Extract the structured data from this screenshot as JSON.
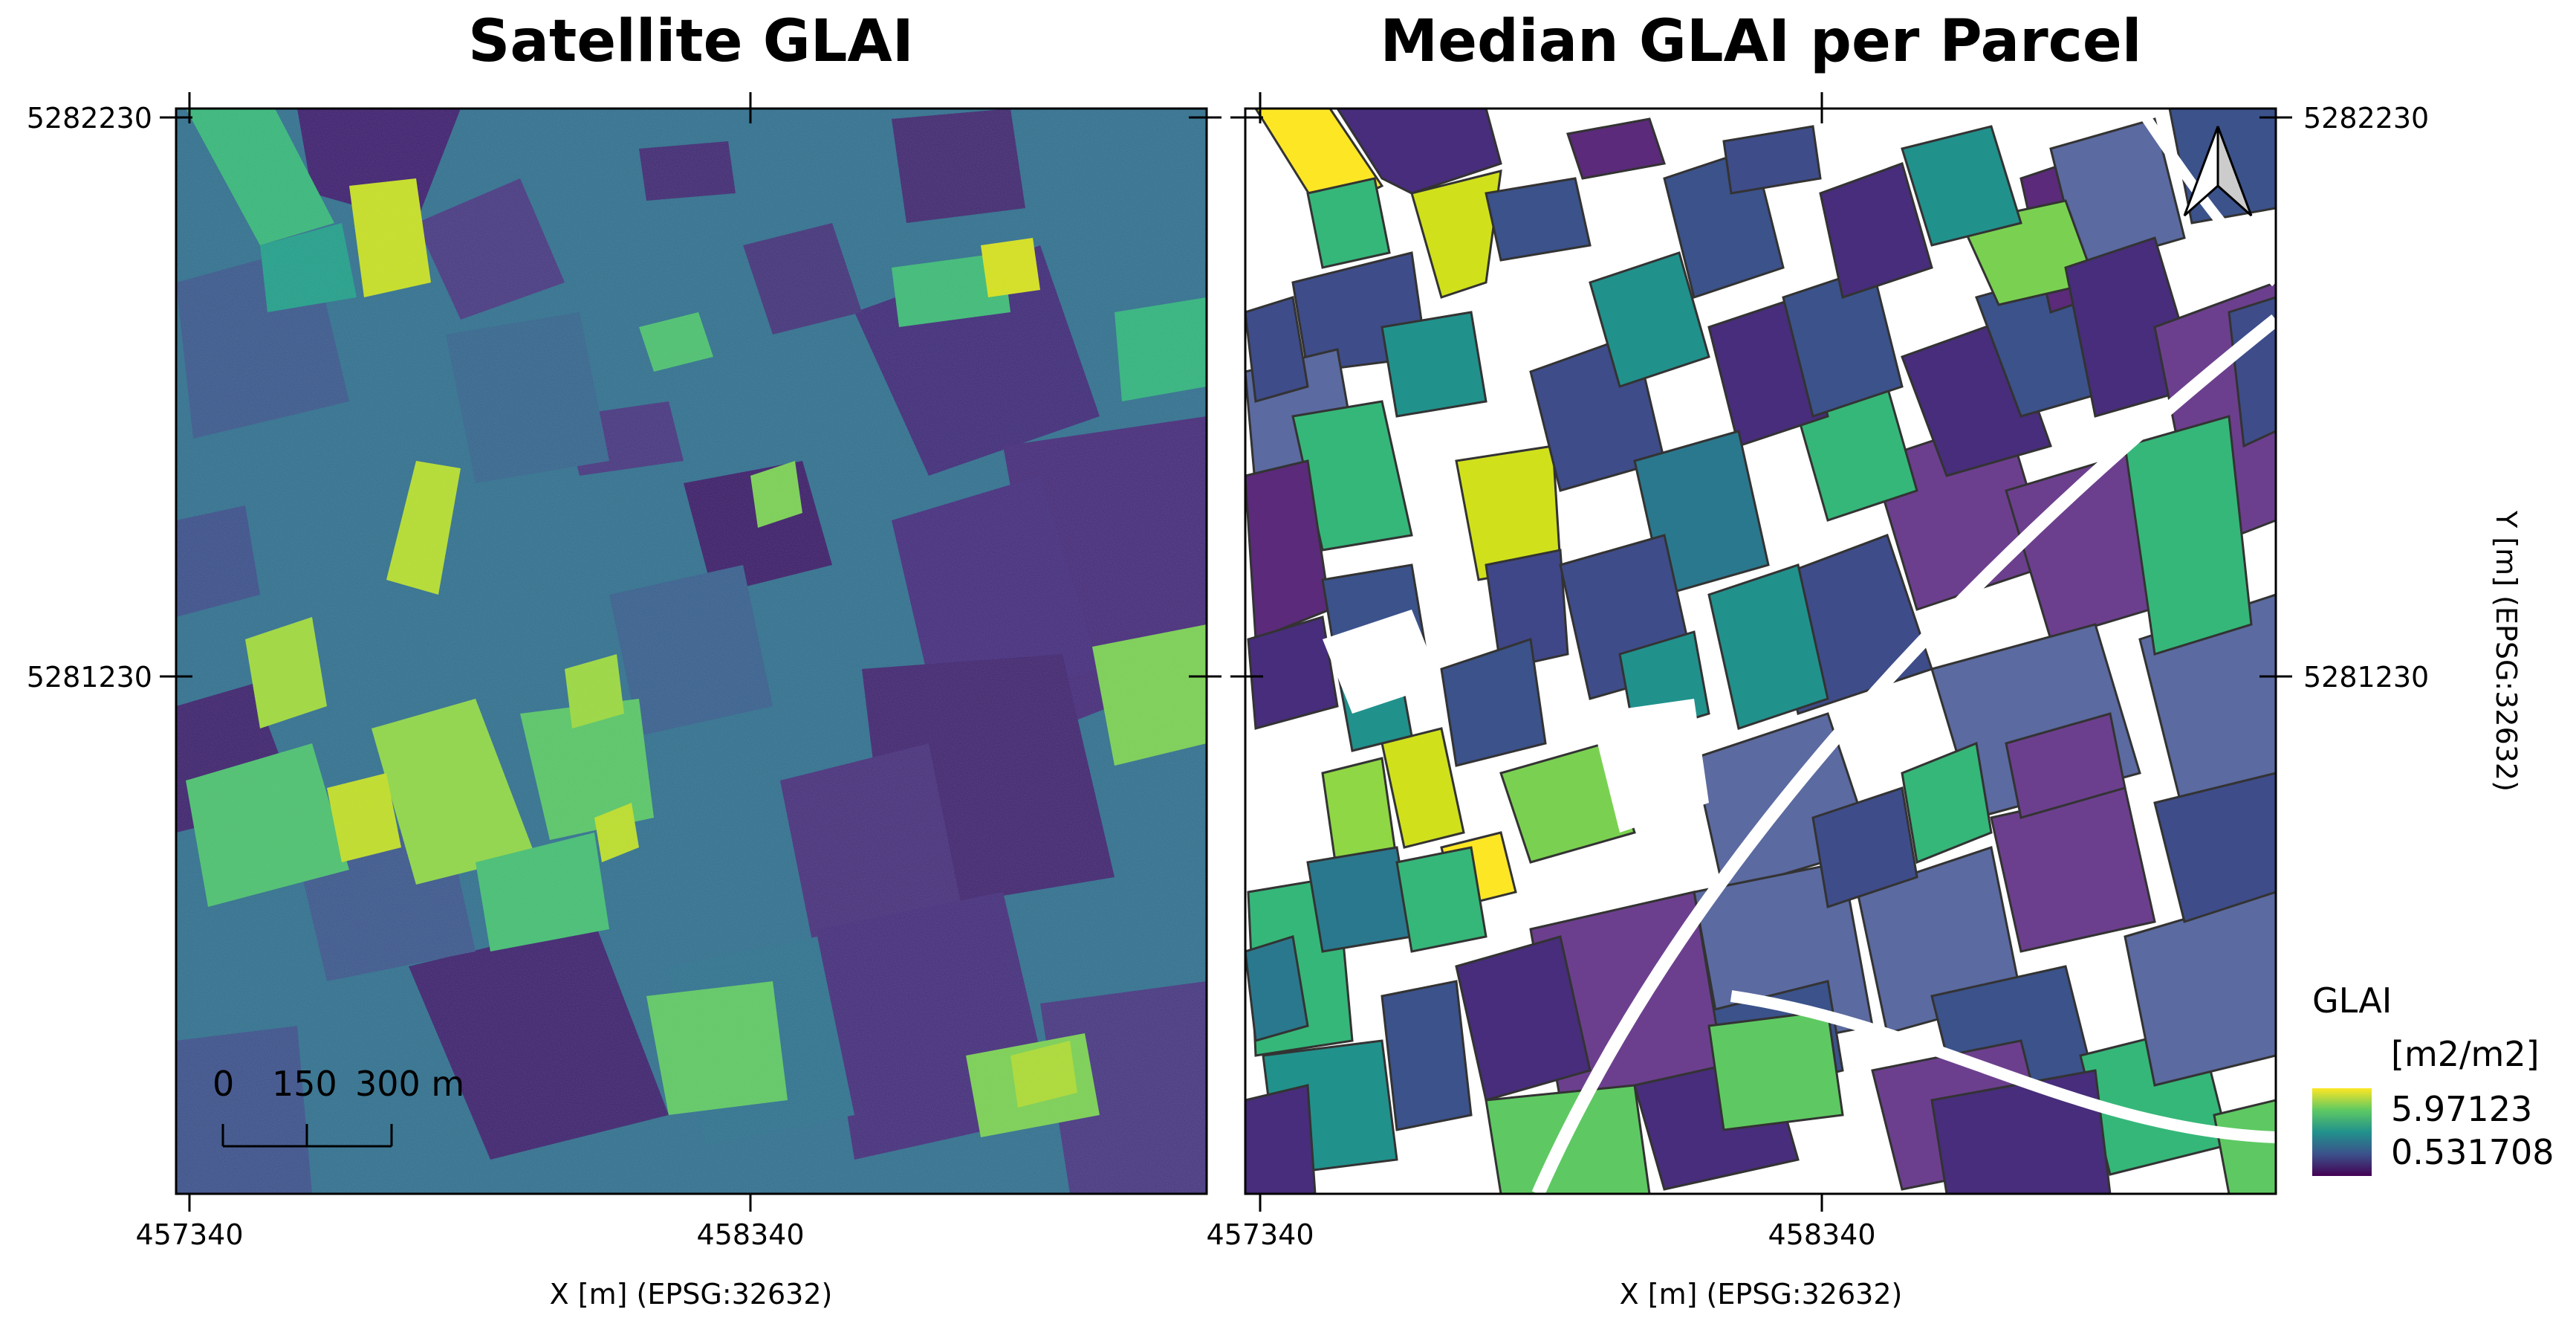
{
  "panels": {
    "left": {
      "title": "Satellite GLAI"
    },
    "right": {
      "title": "Median GLAI per Parcel"
    }
  },
  "axes": {
    "x_label": "X [m] (EPSG:32632)",
    "y_label": "Y [m] (EPSG:32632)",
    "x_ticks": [
      "457340",
      "458340"
    ],
    "y_ticks": [
      "5282230",
      "5281230"
    ]
  },
  "scalebar": {
    "labels": [
      "0",
      "150",
      "300 m"
    ]
  },
  "legend": {
    "title": "GLAI",
    "unit": "[m2/m2]",
    "max_label": "5.97123",
    "min_label": "0.531708",
    "max": 5.97123,
    "min": 0.531708,
    "colormap": [
      "#440154",
      "#3b528b",
      "#21918c",
      "#5ec962",
      "#fde725"
    ]
  },
  "north_arrow": {
    "icon": "north-arrow-icon"
  }
}
